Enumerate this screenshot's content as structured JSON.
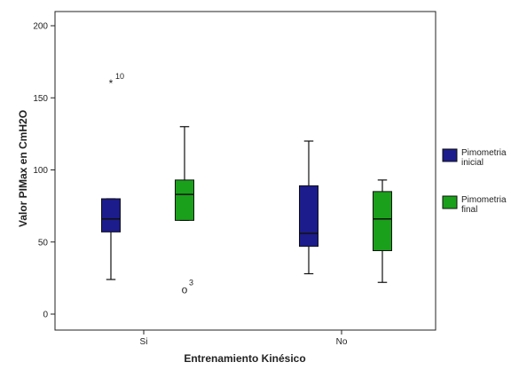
{
  "chart_data": {
    "type": "boxplot",
    "xlabel": "Entrenamiento Kinésico",
    "ylabel": "Valor PIMax en CmH2O",
    "ylim": [
      0,
      200
    ],
    "yticks": [
      0,
      50,
      100,
      150,
      200
    ],
    "categories": [
      "Si",
      "No"
    ],
    "legend_position": "right",
    "series": [
      {
        "name": "Pimometria inicial",
        "color": "#1c1c8c",
        "boxes": [
          {
            "category": "Si",
            "min": 24,
            "q1": 57,
            "median": 66,
            "q3": 80,
            "max": 80,
            "outliers": [
              {
                "value": 160,
                "symbol": "*",
                "label": "10"
              }
            ]
          },
          {
            "category": "No",
            "min": 28,
            "q1": 47,
            "median": 56,
            "q3": 89,
            "max": 120,
            "outliers": []
          }
        ]
      },
      {
        "name": "Pimometria final",
        "color": "#1aa01a",
        "boxes": [
          {
            "category": "Si",
            "min": 65,
            "q1": 65,
            "median": 83,
            "q3": 93,
            "max": 130,
            "outliers": [
              {
                "value": 17,
                "symbol": "o",
                "label": "3"
              }
            ]
          },
          {
            "category": "No",
            "min": 22,
            "q1": 44,
            "median": 66,
            "q3": 85,
            "max": 93,
            "outliers": []
          }
        ]
      }
    ]
  }
}
